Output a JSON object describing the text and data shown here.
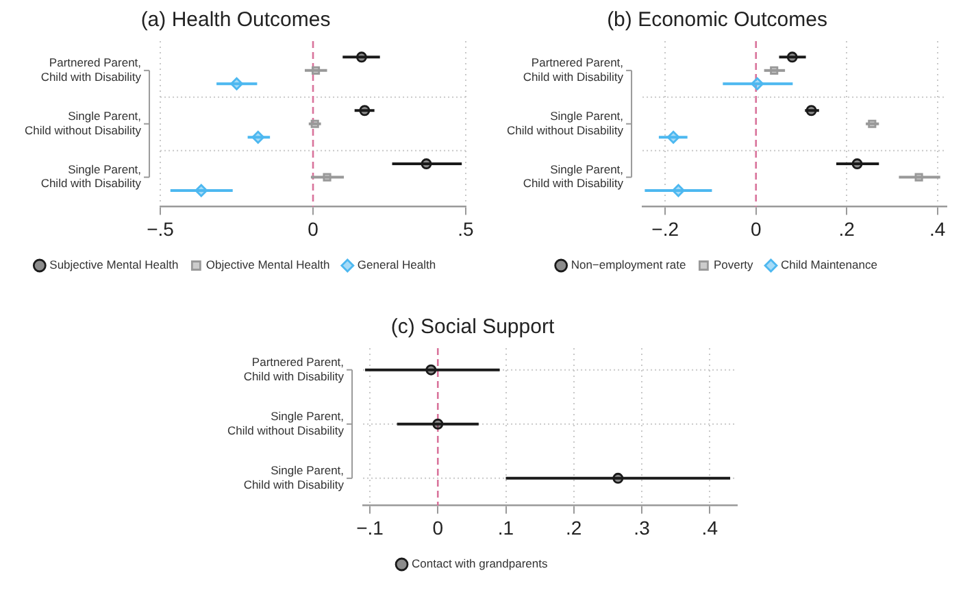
{
  "chart_data": [
    {
      "type": "scatter",
      "orientation": "horizontal",
      "title": "(a) Health Outcomes",
      "categories": [
        "Partnered Parent, Child with Disability",
        "Single Parent, Child without Disability",
        "Single Parent, Child with Disability"
      ],
      "series": [
        {
          "name": "Subjective Mental Health",
          "color": "#1a1a1a",
          "marker": "circle",
          "values": [
            0.159,
            0.169,
            0.371
          ],
          "errors": [
            [
              0.097,
              0.219
            ],
            [
              0.136,
              0.201
            ],
            [
              0.259,
              0.487
            ]
          ]
        },
        {
          "name": "Objective Mental Health",
          "color": "#999999",
          "marker": "square",
          "values": [
            0.009,
            0.006,
            0.046
          ],
          "errors": [
            [
              -0.027,
              0.046
            ],
            [
              -0.014,
              0.026
            ],
            [
              -0.007,
              0.101
            ]
          ]
        },
        {
          "name": "General Health",
          "color": "#4db8f0",
          "marker": "diamond",
          "values": [
            -0.25,
            -0.18,
            -0.366
          ],
          "errors": [
            [
              -0.316,
              -0.183
            ],
            [
              -0.214,
              -0.141
            ],
            [
              -0.467,
              -0.263
            ]
          ]
        }
      ],
      "xlim": [
        -0.5,
        0.5
      ],
      "xticks": [
        {
          "value": -0.5,
          "label": "−.5"
        },
        {
          "value": 0,
          "label": "0"
        },
        {
          "value": 0.5,
          "label": ".5"
        }
      ],
      "ref_lines": [
        {
          "axis": "x",
          "value": 0,
          "color": "#d9739b",
          "line_style": "dashed"
        }
      ],
      "grid": true,
      "legend": "bottom"
    },
    {
      "type": "scatter",
      "orientation": "horizontal",
      "title": "(b) Economic Outcomes",
      "categories": [
        "Partnered Parent, Child with Disability",
        "Single Parent, Child without Disability",
        "Single Parent, Child with Disability"
      ],
      "series": [
        {
          "name": "Non−employment rate",
          "color": "#1a1a1a",
          "marker": "circle",
          "values": [
            0.08,
            0.122,
            0.223
          ],
          "errors": [
            [
              0.051,
              0.11
            ],
            [
              0.108,
              0.139
            ],
            [
              0.177,
              0.271
            ]
          ]
        },
        {
          "name": "Poverty",
          "color": "#999999",
          "marker": "square",
          "values": [
            0.04,
            0.256,
            0.359
          ],
          "errors": [
            [
              0.018,
              0.064
            ],
            [
              0.242,
              0.271
            ],
            [
              0.315,
              0.406
            ]
          ]
        },
        {
          "name": "Child Maintenance",
          "color": "#4db8f0",
          "marker": "diamond",
          "values": [
            0.003,
            -0.182,
            -0.171
          ],
          "errors": [
            [
              -0.073,
              0.081
            ],
            [
              -0.214,
              -0.151
            ],
            [
              -0.245,
              -0.097
            ]
          ]
        }
      ],
      "xlim": [
        -0.25,
        0.42
      ],
      "xticks": [
        {
          "value": -0.2,
          "label": "−.2"
        },
        {
          "value": 0,
          "label": "0"
        },
        {
          "value": 0.2,
          "label": ".2"
        },
        {
          "value": 0.4,
          "label": ".4"
        }
      ],
      "ref_lines": [
        {
          "axis": "x",
          "value": 0,
          "color": "#d9739b",
          "line_style": "dashed"
        }
      ],
      "grid": true,
      "legend": "bottom"
    },
    {
      "type": "scatter",
      "orientation": "horizontal",
      "title": "(c) Social Support",
      "categories": [
        "Partnered Parent, Child with Disability",
        "Single Parent, Child without Disability",
        "Single Parent, Child with Disability"
      ],
      "series": [
        {
          "name": "Contact with grandparents",
          "color": "#1a1a1a",
          "marker": "circle",
          "values": [
            -0.01,
            0.0,
            0.265
          ],
          "errors": [
            [
              -0.107,
              0.091
            ],
            [
              -0.06,
              0.06
            ],
            [
              0.1,
              0.43
            ]
          ]
        }
      ],
      "xlim": [
        -0.11,
        0.44
      ],
      "xticks": [
        {
          "value": -0.1,
          "label": "−.1"
        },
        {
          "value": 0,
          "label": "0"
        },
        {
          "value": 0.1,
          "label": ".1"
        },
        {
          "value": 0.2,
          "label": ".2"
        },
        {
          "value": 0.3,
          "label": ".3"
        },
        {
          "value": 0.4,
          "label": ".4"
        }
      ],
      "ref_lines": [
        {
          "axis": "x",
          "value": 0,
          "color": "#d9739b",
          "line_style": "dashed"
        }
      ],
      "grid": true,
      "legend": "bottom"
    }
  ]
}
